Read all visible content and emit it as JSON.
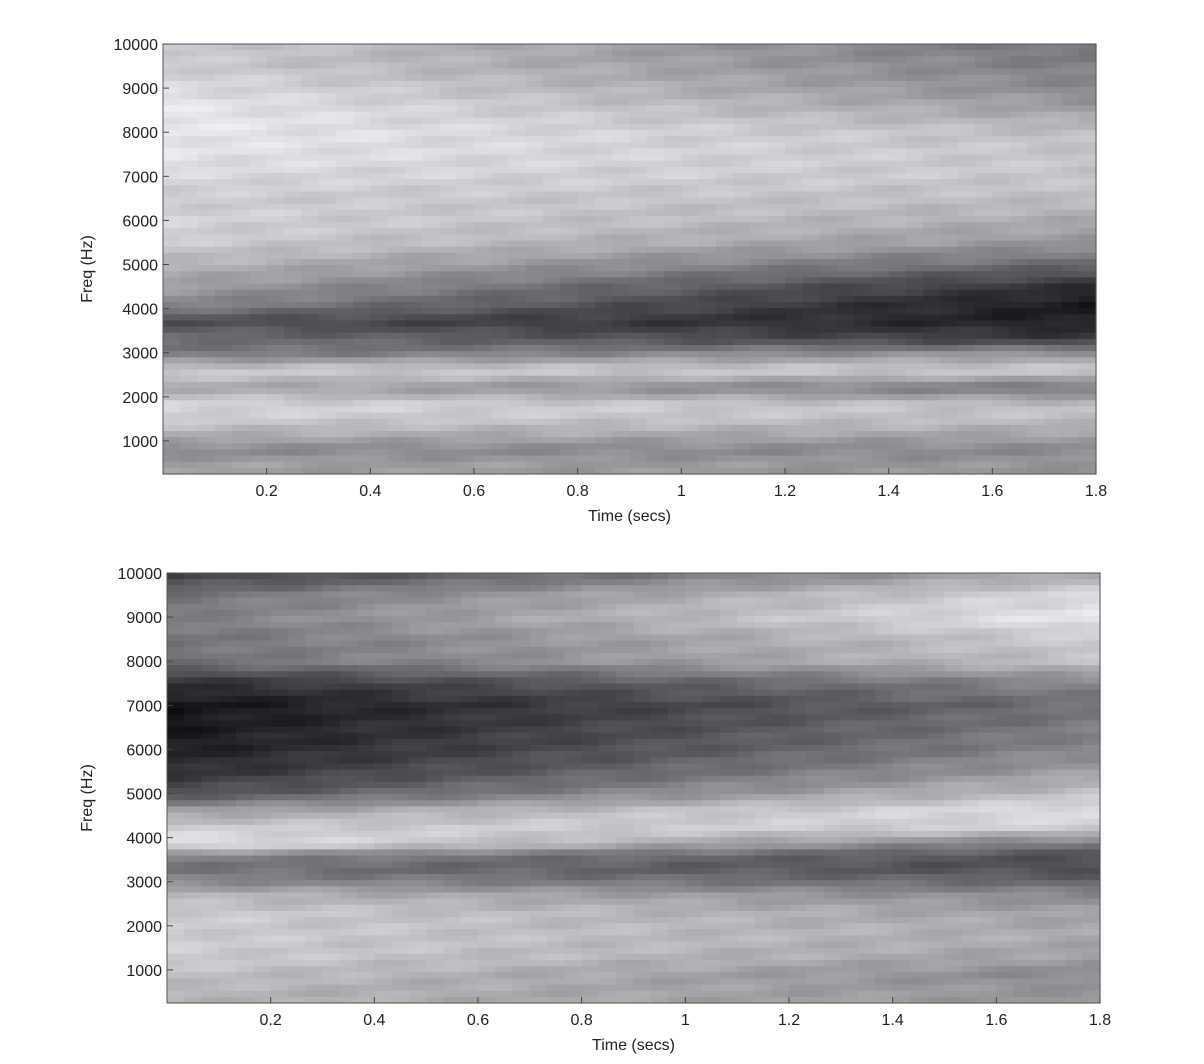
{
  "chart_data": [
    {
      "type": "heatmap",
      "title": "",
      "xlabel": "Time (secs)",
      "ylabel": "Freq (Hz)",
      "xlim": [
        0,
        1.8
      ],
      "ylim": [
        250,
        10000
      ],
      "xticks": [
        "0.2",
        "0.4",
        "0.6",
        "0.8",
        "1",
        "1.2",
        "1.4",
        "1.6",
        "1.8"
      ],
      "yticks": [
        "1000",
        "2000",
        "3000",
        "4000",
        "5000",
        "6000",
        "7000",
        "8000",
        "9000",
        "10000"
      ],
      "colormap": "grayscale, darker = higher energy",
      "intensity_profile": [
        {
          "freq": 500,
          "start": 0.35,
          "end": 0.4
        },
        {
          "freq": 800,
          "start": 0.45,
          "end": 0.45
        },
        {
          "freq": 1100,
          "start": 0.3,
          "end": 0.35
        },
        {
          "freq": 1500,
          "start": 0.15,
          "end": 0.22
        },
        {
          "freq": 1800,
          "start": 0.1,
          "end": 0.2
        },
        {
          "freq": 2200,
          "start": 0.3,
          "end": 0.55
        },
        {
          "freq": 2600,
          "start": 0.15,
          "end": 0.15
        },
        {
          "freq": 3000,
          "start": 0.55,
          "end": 0.4
        },
        {
          "freq": 3300,
          "start": 0.55,
          "end": 0.8
        },
        {
          "freq": 3700,
          "start": 0.7,
          "end": 0.92
        },
        {
          "freq": 4100,
          "start": 0.45,
          "end": 0.95
        },
        {
          "freq": 4500,
          "start": 0.35,
          "end": 0.85
        },
        {
          "freq": 5000,
          "start": 0.25,
          "end": 0.6
        },
        {
          "freq": 5500,
          "start": 0.15,
          "end": 0.4
        },
        {
          "freq": 6000,
          "start": 0.12,
          "end": 0.3
        },
        {
          "freq": 6500,
          "start": 0.15,
          "end": 0.22
        },
        {
          "freq": 7000,
          "start": 0.1,
          "end": 0.18
        },
        {
          "freq": 7500,
          "start": 0.05,
          "end": 0.18
        },
        {
          "freq": 8000,
          "start": 0.03,
          "end": 0.22
        },
        {
          "freq": 8500,
          "start": 0.03,
          "end": 0.35
        },
        {
          "freq": 9000,
          "start": 0.08,
          "end": 0.45
        },
        {
          "freq": 9500,
          "start": 0.15,
          "end": 0.5
        },
        {
          "freq": 10000,
          "start": 0.15,
          "end": 0.55
        }
      ]
    },
    {
      "type": "heatmap",
      "title": "",
      "xlabel": "Time (secs)",
      "ylabel": "Freq (Hz)",
      "xlim": [
        0,
        1.8
      ],
      "ylim": [
        250,
        10000
      ],
      "xticks": [
        "0.2",
        "0.4",
        "0.6",
        "0.8",
        "1",
        "1.2",
        "1.4",
        "1.6",
        "1.8"
      ],
      "yticks": [
        "1000",
        "2000",
        "3000",
        "4000",
        "5000",
        "6000",
        "7000",
        "8000",
        "9000",
        "10000"
      ],
      "colormap": "grayscale, darker = higher energy",
      "intensity_profile": [
        {
          "freq": 500,
          "start": 0.25,
          "end": 0.4
        },
        {
          "freq": 900,
          "start": 0.2,
          "end": 0.45
        },
        {
          "freq": 1300,
          "start": 0.15,
          "end": 0.35
        },
        {
          "freq": 1800,
          "start": 0.15,
          "end": 0.3
        },
        {
          "freq": 2300,
          "start": 0.15,
          "end": 0.35
        },
        {
          "freq": 2700,
          "start": 0.25,
          "end": 0.45
        },
        {
          "freq": 3000,
          "start": 0.45,
          "end": 0.6
        },
        {
          "freq": 3300,
          "start": 0.55,
          "end": 0.72
        },
        {
          "freq": 3600,
          "start": 0.45,
          "end": 0.7
        },
        {
          "freq": 3850,
          "start": 0.02,
          "end": 0.55
        },
        {
          "freq": 4200,
          "start": 0.15,
          "end": 0.15
        },
        {
          "freq": 4600,
          "start": 0.35,
          "end": 0.05
        },
        {
          "freq": 5000,
          "start": 0.7,
          "end": 0.2
        },
        {
          "freq": 5500,
          "start": 0.85,
          "end": 0.35
        },
        {
          "freq": 6000,
          "start": 0.92,
          "end": 0.45
        },
        {
          "freq": 6500,
          "start": 0.95,
          "end": 0.5
        },
        {
          "freq": 7000,
          "start": 0.97,
          "end": 0.55
        },
        {
          "freq": 7500,
          "start": 0.85,
          "end": 0.45
        },
        {
          "freq": 8000,
          "start": 0.55,
          "end": 0.2
        },
        {
          "freq": 8500,
          "start": 0.55,
          "end": 0.15
        },
        {
          "freq": 9000,
          "start": 0.5,
          "end": 0.02
        },
        {
          "freq": 9500,
          "start": 0.55,
          "end": 0.1
        },
        {
          "freq": 10000,
          "start": 0.8,
          "end": 0.3
        }
      ]
    }
  ]
}
